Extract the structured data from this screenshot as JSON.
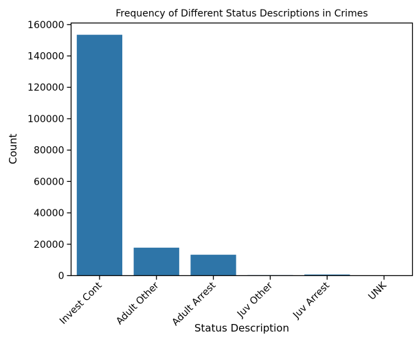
{
  "chart_data": {
    "type": "bar",
    "title": "Frequency of Different Status Descriptions in Crimes",
    "xlabel": "Status Description",
    "ylabel": "Count",
    "categories": [
      "Invest Cont",
      "Adult Other",
      "Adult Arrest",
      "Juv Other",
      "Juv Arrest",
      "UNK"
    ],
    "values": [
      153500,
      17800,
      13300,
      300,
      700,
      10
    ],
    "ylim": [
      0,
      161000
    ],
    "yticks": [
      0,
      20000,
      40000,
      60000,
      80000,
      100000,
      120000,
      140000,
      160000
    ],
    "ytick_labels": [
      "0",
      "20000",
      "40000",
      "60000",
      "80000",
      "100000",
      "120000",
      "140000",
      "160000"
    ],
    "bar_color": "#2e75a8",
    "grid": false,
    "legend": "none"
  }
}
